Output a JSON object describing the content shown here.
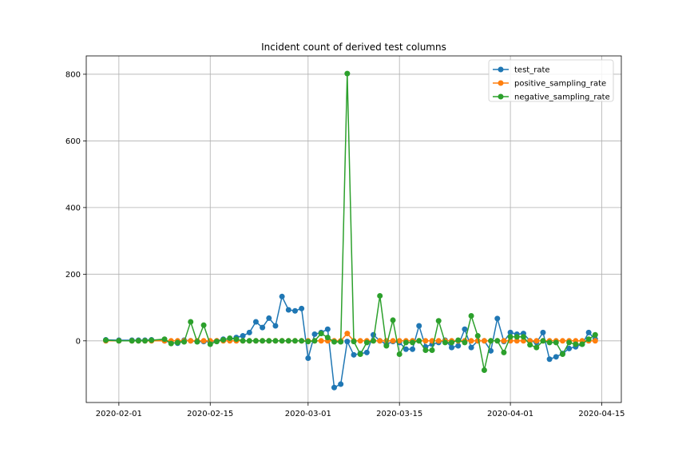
{
  "chart_data": {
    "type": "line",
    "title": "Incident count of derived test columns",
    "xlabel": "",
    "ylabel": "",
    "x_type": "date",
    "xlim": [
      "2020-01-27",
      "2020-04-18"
    ],
    "ylim": [
      -185,
      855
    ],
    "x_ticks": [
      "2020-02-01",
      "2020-02-15",
      "2020-03-01",
      "2020-03-15",
      "2020-04-01",
      "2020-04-15"
    ],
    "x_tick_labels": [
      "2020-02-01",
      "2020-02-15",
      "2020-03-01",
      "2020-03-15",
      "2020-04-01",
      "2020-04-15"
    ],
    "y_ticks": [
      0,
      200,
      400,
      600,
      800
    ],
    "y_tick_labels": [
      "0",
      "200",
      "400",
      "600",
      "800"
    ],
    "grid": true,
    "legend_position": "top-right",
    "x": [
      "2020-01-30",
      "2020-02-01",
      "2020-02-03",
      "2020-02-04",
      "2020-02-05",
      "2020-02-06",
      "2020-02-08",
      "2020-02-09",
      "2020-02-10",
      "2020-02-11",
      "2020-02-12",
      "2020-02-13",
      "2020-02-14",
      "2020-02-15",
      "2020-02-16",
      "2020-02-17",
      "2020-02-18",
      "2020-02-19",
      "2020-02-20",
      "2020-02-21",
      "2020-02-22",
      "2020-02-23",
      "2020-02-24",
      "2020-02-25",
      "2020-02-26",
      "2020-02-27",
      "2020-02-28",
      "2020-02-29",
      "2020-03-01",
      "2020-03-02",
      "2020-03-03",
      "2020-03-04",
      "2020-03-05",
      "2020-03-06",
      "2020-03-07",
      "2020-03-08",
      "2020-03-09",
      "2020-03-10",
      "2020-03-11",
      "2020-03-12",
      "2020-03-13",
      "2020-03-14",
      "2020-03-15",
      "2020-03-16",
      "2020-03-17",
      "2020-03-18",
      "2020-03-19",
      "2020-03-20",
      "2020-03-21",
      "2020-03-22",
      "2020-03-23",
      "2020-03-24",
      "2020-03-25",
      "2020-03-26",
      "2020-03-27",
      "2020-03-28",
      "2020-03-29",
      "2020-03-30",
      "2020-03-31",
      "2020-04-01",
      "2020-04-02",
      "2020-04-03",
      "2020-04-04",
      "2020-04-05",
      "2020-04-06",
      "2020-04-07",
      "2020-04-08",
      "2020-04-09",
      "2020-04-10",
      "2020-04-11",
      "2020-04-12",
      "2020-04-13",
      "2020-04-14"
    ],
    "series": [
      {
        "name": "test_rate",
        "color": "#1f77b4",
        "values": [
          3,
          2,
          2,
          2,
          2,
          3,
          0,
          -5,
          -7,
          2,
          0,
          -2,
          -2,
          -3,
          0,
          5,
          5,
          10,
          15,
          25,
          57,
          40,
          68,
          45,
          133,
          93,
          90,
          97,
          -52,
          20,
          25,
          35,
          -140,
          -130,
          -2,
          -42,
          -38,
          -35,
          18,
          0,
          -10,
          -2,
          -5,
          -25,
          -25,
          45,
          -18,
          -10,
          -5,
          2,
          -20,
          -15,
          35,
          -20,
          0,
          0,
          -30,
          67,
          -2,
          25,
          20,
          22,
          0,
          -5,
          25,
          -55,
          -48,
          -38,
          -23,
          -18,
          -10,
          25,
          5
        ]
      },
      {
        "name": "positive_sampling_rate",
        "color": "#ff7f0e",
        "values": [
          0,
          0,
          0,
          0,
          0,
          0,
          0,
          0,
          0,
          0,
          0,
          0,
          0,
          0,
          0,
          0,
          0,
          0,
          0,
          0,
          0,
          0,
          0,
          0,
          0,
          0,
          0,
          0,
          0,
          0,
          0,
          0,
          0,
          0,
          22,
          0,
          0,
          0,
          0,
          0,
          0,
          0,
          0,
          0,
          0,
          0,
          0,
          0,
          0,
          0,
          0,
          0,
          0,
          0,
          0,
          0,
          0,
          0,
          0,
          0,
          0,
          0,
          0,
          0,
          0,
          0,
          0,
          0,
          0,
          0,
          0,
          0,
          0
        ]
      },
      {
        "name": "negative_sampling_rate",
        "color": "#2ca02c",
        "values": [
          2,
          0,
          0,
          0,
          0,
          2,
          5,
          -8,
          -5,
          -3,
          57,
          -3,
          47,
          -10,
          -2,
          3,
          8,
          5,
          0,
          0,
          0,
          0,
          0,
          0,
          0,
          0,
          0,
          0,
          -2,
          0,
          22,
          10,
          -3,
          -3,
          802,
          -2,
          -40,
          -5,
          0,
          135,
          -15,
          62,
          -40,
          -5,
          -5,
          0,
          -28,
          -28,
          60,
          -5,
          -5,
          2,
          -5,
          75,
          15,
          -88,
          0,
          0,
          -35,
          12,
          12,
          12,
          -12,
          -20,
          0,
          -5,
          -5,
          -40,
          -5,
          -10,
          -10,
          5,
          18
        ]
      }
    ]
  }
}
